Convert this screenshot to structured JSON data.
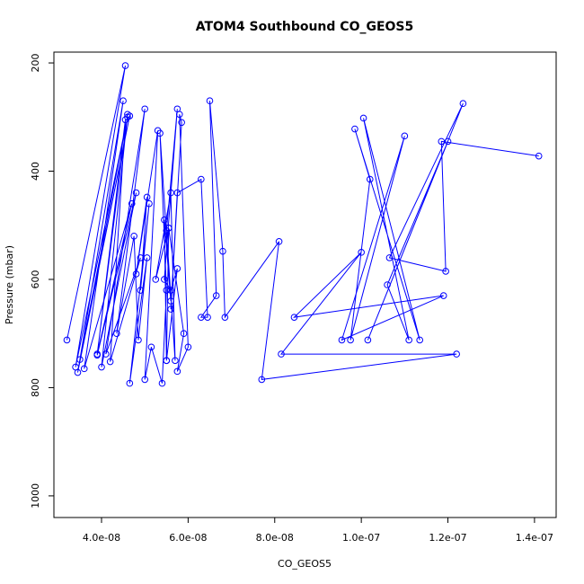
{
  "chart_data": {
    "type": "line",
    "title": "ATOM4 Southbound CO_GEOS5",
    "xlabel": "CO_GEOS5",
    "ylabel": "Pressure (mbar)",
    "xlim": [
      2.9e-08,
      1.45e-07
    ],
    "ylim": [
      1040,
      180
    ],
    "y_reversed": true,
    "x_ticks": [
      4e-08,
      6e-08,
      8e-08,
      1e-07,
      1.2e-07,
      1.4e-07
    ],
    "x_tick_labels": [
      "4.0e-08",
      "6.0e-08",
      "8.0e-08",
      "1.0e-07",
      "1.2e-07",
      "1.4e-07"
    ],
    "y_ticks": [
      200,
      400,
      600,
      800,
      1000
    ],
    "y_tick_labels": [
      "200",
      "400",
      "600",
      "800",
      "1000"
    ],
    "grid": false,
    "line_color": "#0000ff",
    "marker": "open-circle",
    "series": [
      {
        "x": [
          3.2e-08,
          4.55e-08,
          3.4e-08,
          4.6e-08,
          3.5e-08,
          4.65e-08,
          3.45e-08,
          4.5e-08,
          3.6e-08,
          4.7e-08,
          3.9e-08,
          4.6e-08,
          4e-08,
          4.8e-08,
          3.9e-08,
          4.55e-08,
          4.2e-08,
          4.9e-08,
          4.1e-08,
          5e-08,
          4.35e-08,
          4.75e-08,
          4.85e-08,
          5.05e-08,
          4.65e-08,
          5.1e-08,
          4.9e-08,
          5.05e-08,
          4.8e-08,
          5.3e-08,
          5e-08,
          5.15e-08,
          5.4e-08,
          5.5e-08,
          5.35e-08,
          5.6e-08,
          5.45e-08,
          5.5e-08,
          5.55e-08,
          5.25e-08,
          5.6e-08,
          5.7e-08,
          5.5e-08,
          5.75e-08,
          5.45e-08,
          5.6e-08,
          5.75e-08,
          5.5e-08,
          5.55e-08,
          5.9e-08,
          5.75e-08,
          6e-08,
          5.8e-08,
          5.85e-08,
          5.6e-08,
          5.75e-08,
          6.3e-08,
          6.45e-08,
          6.3e-08,
          6.65e-08,
          6.5e-08,
          6.8e-08,
          6.85e-08,
          8.1e-08,
          7.7e-08,
          1.22e-07,
          8.15e-08,
          1e-07,
          8.45e-08,
          1.19e-07,
          9.55e-08,
          1.1e-07,
          9.75e-08,
          1.02e-07,
          9.85e-08,
          1.135e-07,
          1.005e-07,
          1.11e-07,
          1.06e-07,
          1.2e-07,
          1.015e-07,
          1.235e-07,
          1.065e-07,
          1.195e-07,
          1.185e-07,
          1.41e-07
        ],
        "y": [
          712,
          205,
          762,
          300,
          748,
          298,
          772,
          270,
          765,
          460,
          738,
          295,
          762,
          440,
          740,
          305,
          752,
          560,
          738,
          285,
          700,
          520,
          712,
          560,
          792,
          460,
          620,
          448,
          590,
          325,
          785,
          725,
          792,
          620,
          330,
          640,
          490,
          750,
          505,
          600,
          440,
          750,
          510,
          285,
          600,
          620,
          580,
          750,
          505,
          700,
          770,
          725,
          295,
          310,
          655,
          440,
          415,
          670,
          670,
          630,
          270,
          548,
          670,
          530,
          785,
          738,
          738,
          550,
          670,
          630,
          712,
          335,
          712,
          415,
          322,
          712,
          302,
          712,
          610,
          345,
          712,
          275,
          560,
          585,
          345,
          372
        ]
      }
    ]
  }
}
